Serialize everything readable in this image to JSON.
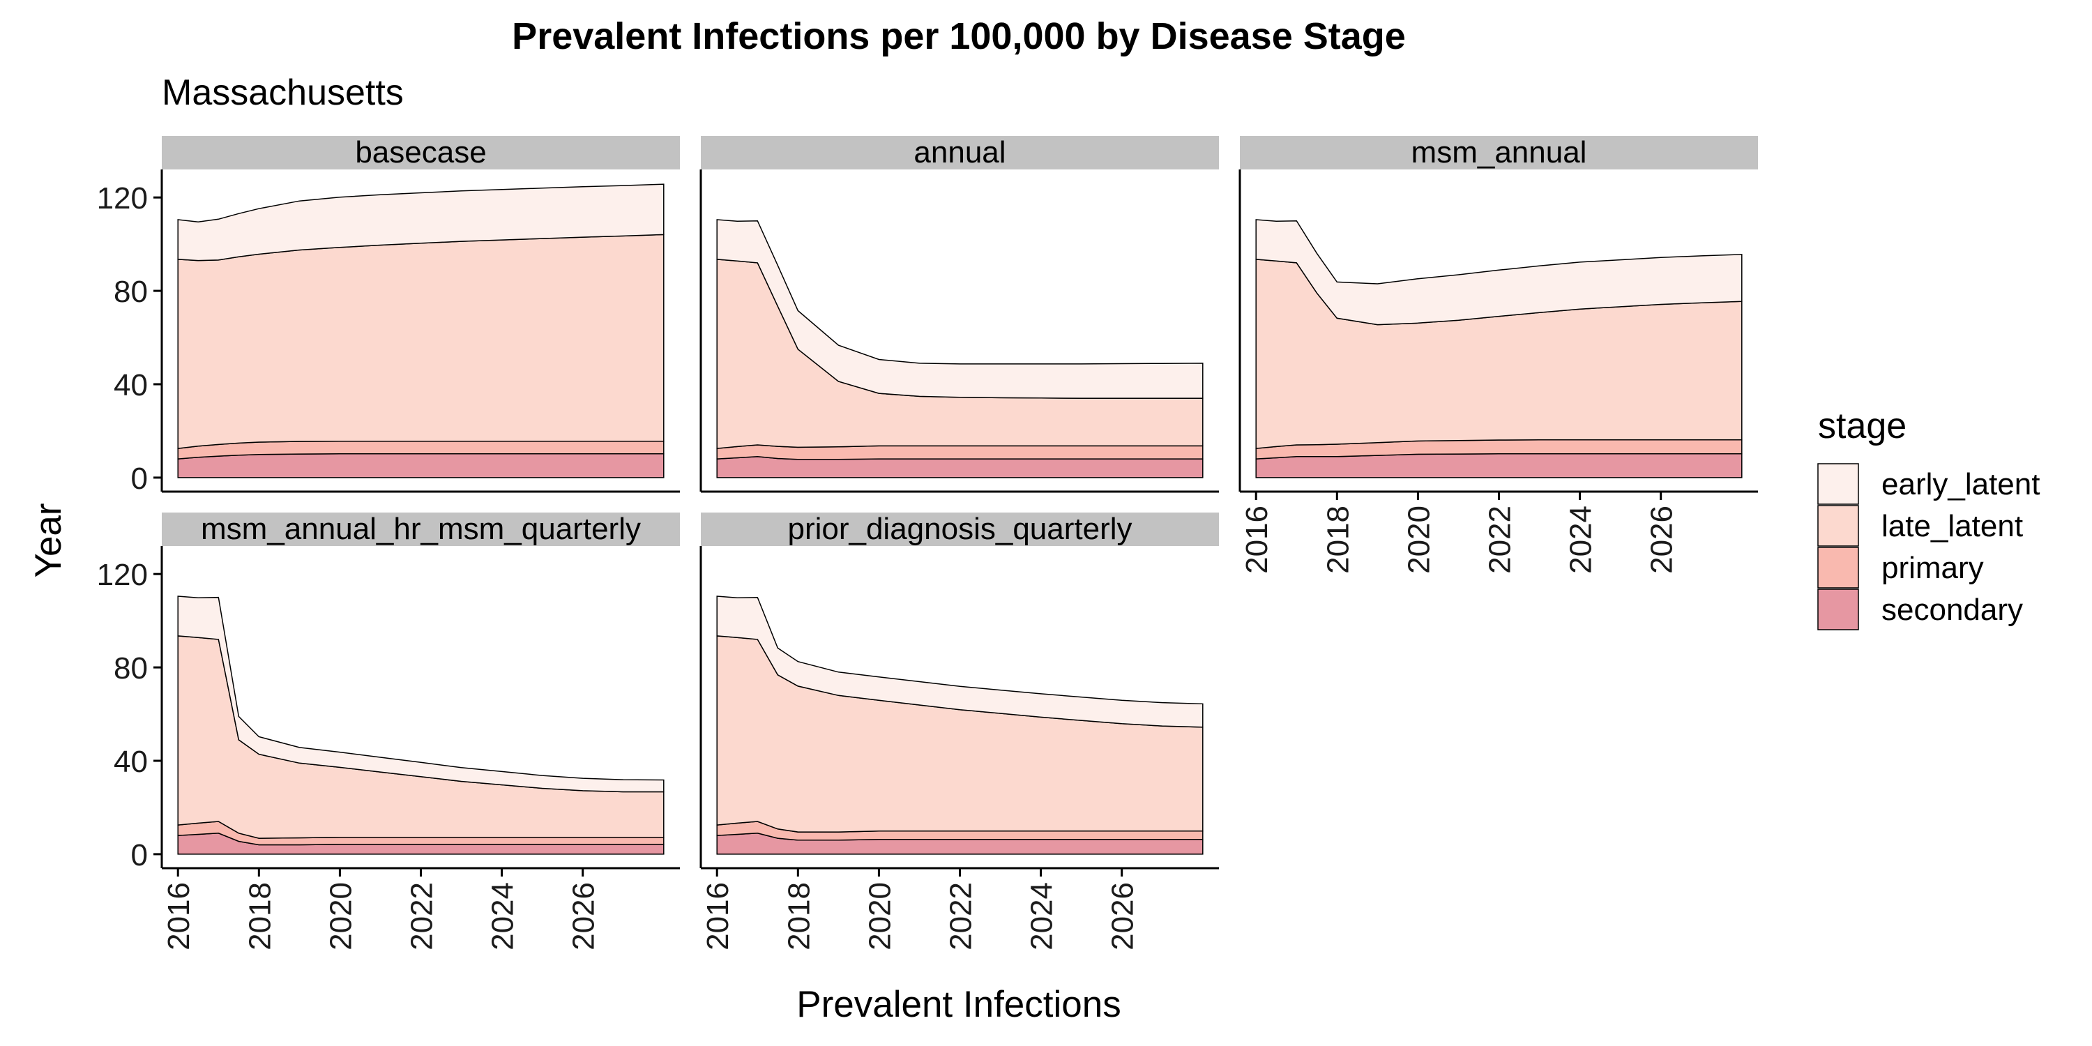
{
  "chart_data": {
    "type": "area",
    "title": "Prevalent Infections per 100,000 by Disease Stage",
    "subtitle": "Massachusetts",
    "xlabel": "Prevalent Infections",
    "ylabel": "Year",
    "xlim": [
      2015.6,
      2028.4
    ],
    "ylim": [
      -6,
      132
    ],
    "x_ticks": [
      2016,
      2018,
      2020,
      2022,
      2024,
      2026
    ],
    "y_ticks": [
      0,
      40,
      80,
      120
    ],
    "grid": false,
    "stacked": true,
    "legend": {
      "title": "stage",
      "placement": "right",
      "entries": [
        "early_latent",
        "late_latent",
        "primary",
        "secondary"
      ]
    },
    "colors": {
      "early_latent": "#fdf0ec",
      "late_latent": "#fcd9cf",
      "primary": "#f9b9af",
      "secondary": "#e697a2",
      "strip": "#c2c2c2",
      "outline": "#000000"
    },
    "x": [
      2016,
      2016.5,
      2017,
      2017.5,
      2018,
      2019,
      2020,
      2021,
      2022,
      2023,
      2024,
      2025,
      2026,
      2027,
      2028
    ],
    "panels": [
      {
        "name": "basecase",
        "series": [
          {
            "name": "secondary",
            "values": [
              8,
              8.7,
              9.2,
              9.6,
              9.9,
              10.1,
              10.2,
              10.2,
              10.2,
              10.2,
              10.2,
              10.2,
              10.2,
              10.2,
              10.2
            ]
          },
          {
            "name": "primary",
            "values": [
              4.5,
              4.8,
              5.0,
              5.2,
              5.3,
              5.4,
              5.4,
              5.4,
              5.4,
              5.4,
              5.4,
              5.4,
              5.4,
              5.4,
              5.4
            ]
          },
          {
            "name": "late_latent",
            "values": [
              81,
              79.5,
              79,
              79.8,
              80.5,
              82,
              83,
              84,
              84.8,
              85.6,
              86.2,
              86.8,
              87.4,
              87.9,
              88.5
            ]
          },
          {
            "name": "early_latent",
            "values": [
              17,
              16.5,
              17.5,
              18.5,
              19.5,
              21,
              21.5,
              21.6,
              21.6,
              21.6,
              21.6,
              21.6,
              21.6,
              21.6,
              21.6
            ]
          }
        ]
      },
      {
        "name": "annual",
        "series": [
          {
            "name": "secondary",
            "values": [
              8,
              8.5,
              9,
              8.2,
              7.8,
              7.8,
              8,
              8,
              8,
              8,
              8,
              8,
              8,
              8,
              8
            ]
          },
          {
            "name": "primary",
            "values": [
              4.5,
              4.8,
              5,
              5.2,
              5.2,
              5.4,
              5.6,
              5.6,
              5.6,
              5.6,
              5.6,
              5.6,
              5.6,
              5.6,
              5.6
            ]
          },
          {
            "name": "late_latent",
            "values": [
              81,
              79.5,
              78,
              60,
              42,
              28,
              22.5,
              21.2,
              20.8,
              20.6,
              20.5,
              20.4,
              20.4,
              20.4,
              20.4
            ]
          },
          {
            "name": "early_latent",
            "values": [
              17,
              17,
              18,
              17.5,
              16.5,
              15.5,
              14.5,
              14.2,
              14.3,
              14.5,
              14.6,
              14.7,
              14.8,
              14.9,
              15
            ]
          }
        ]
      },
      {
        "name": "msm_annual",
        "series": [
          {
            "name": "secondary",
            "values": [
              8,
              8.5,
              9,
              9,
              9,
              9.5,
              10,
              10.1,
              10.2,
              10.2,
              10.2,
              10.2,
              10.2,
              10.2,
              10.2
            ]
          },
          {
            "name": "primary",
            "values": [
              4.5,
              4.8,
              5,
              5.1,
              5.3,
              5.5,
              5.7,
              5.8,
              5.9,
              6,
              6,
              6,
              6,
              6,
              6
            ]
          },
          {
            "name": "late_latent",
            "values": [
              81,
              79.5,
              78,
              65,
              54,
              50.5,
              50.5,
              51.5,
              53,
              54.5,
              56,
              57,
              58,
              58.7,
              59.3
            ]
          },
          {
            "name": "early_latent",
            "values": [
              17,
              17,
              18,
              17,
              15.5,
              17.5,
              19,
              19.5,
              19.8,
              20,
              20.1,
              20.1,
              20.1,
              20.1,
              20.1
            ]
          }
        ]
      },
      {
        "name": "msm_annual_hr_msm_quarterly",
        "series": [
          {
            "name": "secondary",
            "values": [
              8,
              8.5,
              9,
              5.5,
              4,
              4,
              4.2,
              4.2,
              4.2,
              4.2,
              4.2,
              4.2,
              4.2,
              4.2,
              4.2
            ]
          },
          {
            "name": "primary",
            "values": [
              4.5,
              4.8,
              5,
              3.5,
              2.8,
              3,
              3,
              3,
              3,
              3,
              3,
              3,
              3,
              3,
              3
            ]
          },
          {
            "name": "late_latent",
            "values": [
              81,
              79.5,
              78,
              40,
              36,
              32,
              30,
              28,
              26,
              24,
              22.5,
              21,
              20,
              19.5,
              19.5
            ]
          },
          {
            "name": "early_latent",
            "values": [
              17,
              17,
              18,
              10,
              7.5,
              6.7,
              6.5,
              6.3,
              6.1,
              5.9,
              5.7,
              5.5,
              5.3,
              5.2,
              5.1
            ]
          }
        ]
      },
      {
        "name": "prior_diagnosis_quarterly",
        "series": [
          {
            "name": "secondary",
            "values": [
              8,
              8.5,
              9,
              6.8,
              6,
              6,
              6.3,
              6.3,
              6.3,
              6.3,
              6.3,
              6.3,
              6.3,
              6.3,
              6.3
            ]
          },
          {
            "name": "primary",
            "values": [
              4.5,
              4.8,
              5,
              4,
              3.5,
              3.5,
              3.6,
              3.6,
              3.6,
              3.6,
              3.6,
              3.6,
              3.6,
              3.6,
              3.6
            ]
          },
          {
            "name": "late_latent",
            "values": [
              81,
              79.5,
              78,
              66,
              62.5,
              58.5,
              56,
              54,
              52,
              50.4,
              48.8,
              47.4,
              46,
              45,
              44.5
            ]
          },
          {
            "name": "early_latent",
            "values": [
              17,
              17,
              18,
              11.5,
              10.5,
              10,
              10,
              10,
              10,
              10,
              10,
              10,
              10,
              10,
              10
            ]
          }
        ]
      }
    ]
  }
}
